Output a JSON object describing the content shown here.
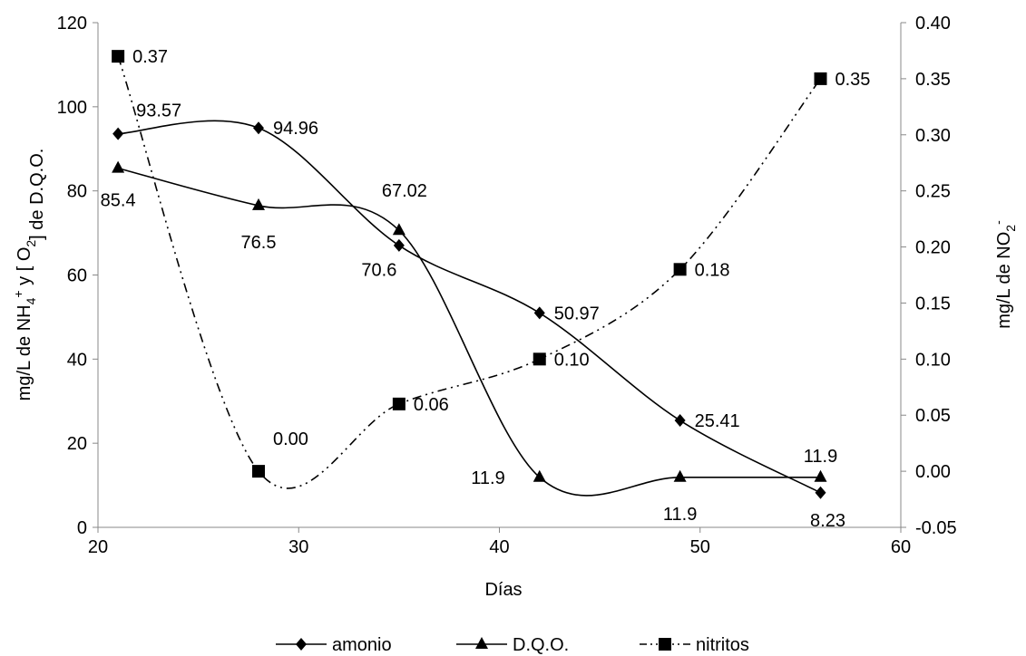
{
  "chart_data": {
    "type": "line",
    "xlabel": "Días",
    "ylabel_left": {
      "parts": [
        "mg/L   de   NH",
        "4",
        "+",
        " y [ O",
        "2",
        "] de D.Q.O."
      ]
    },
    "ylabel_right": {
      "parts": [
        "mg/L   de   NO",
        "2",
        "-"
      ]
    },
    "xlim": [
      20,
      60
    ],
    "xticks": [
      20,
      30,
      40,
      50,
      60
    ],
    "ylim_left": [
      0,
      120
    ],
    "yticks_left": [
      0,
      20,
      40,
      60,
      80,
      100,
      120
    ],
    "ylim_right": [
      -0.05,
      0.4
    ],
    "yticks_right": [
      "-0.05",
      "0.00",
      "0.05",
      "0.10",
      "0.15",
      "0.20",
      "0.25",
      "0.30",
      "0.35",
      "0.40"
    ],
    "grid": false,
    "legend_position": "bottom",
    "series": [
      {
        "name": "amonio",
        "axis": "left",
        "marker": "diamond",
        "line_style": "solid",
        "smooth": true,
        "color": "#000000",
        "x": [
          21,
          28,
          35,
          42,
          49,
          56
        ],
        "y": [
          93.57,
          94.96,
          67.02,
          50.97,
          25.41,
          8.23
        ],
        "labels": [
          "93.57",
          "94.96",
          "67.02",
          "50.97",
          "25.41",
          "8.23"
        ]
      },
      {
        "name": "D.Q.O.",
        "axis": "left",
        "marker": "triangle",
        "line_style": "solid",
        "smooth": true,
        "color": "#000000",
        "x": [
          21,
          28,
          35,
          42,
          49,
          56
        ],
        "y": [
          85.4,
          76.5,
          70.6,
          11.9,
          11.9,
          11.9
        ],
        "labels": [
          "85.4",
          "76.5",
          "70.6",
          "11.9",
          "11.9",
          "11.9"
        ]
      },
      {
        "name": "nitritos",
        "axis": "right",
        "marker": "square",
        "line_style": "dash-dot-dot",
        "smooth": true,
        "color": "#000000",
        "x": [
          21,
          28,
          35,
          42,
          49,
          56
        ],
        "y": [
          0.37,
          0.0,
          0.06,
          0.1,
          0.18,
          0.35
        ],
        "labels": [
          "0.37",
          "0.00",
          "0.06",
          "0.10",
          "0.18",
          "0.35"
        ]
      }
    ]
  }
}
